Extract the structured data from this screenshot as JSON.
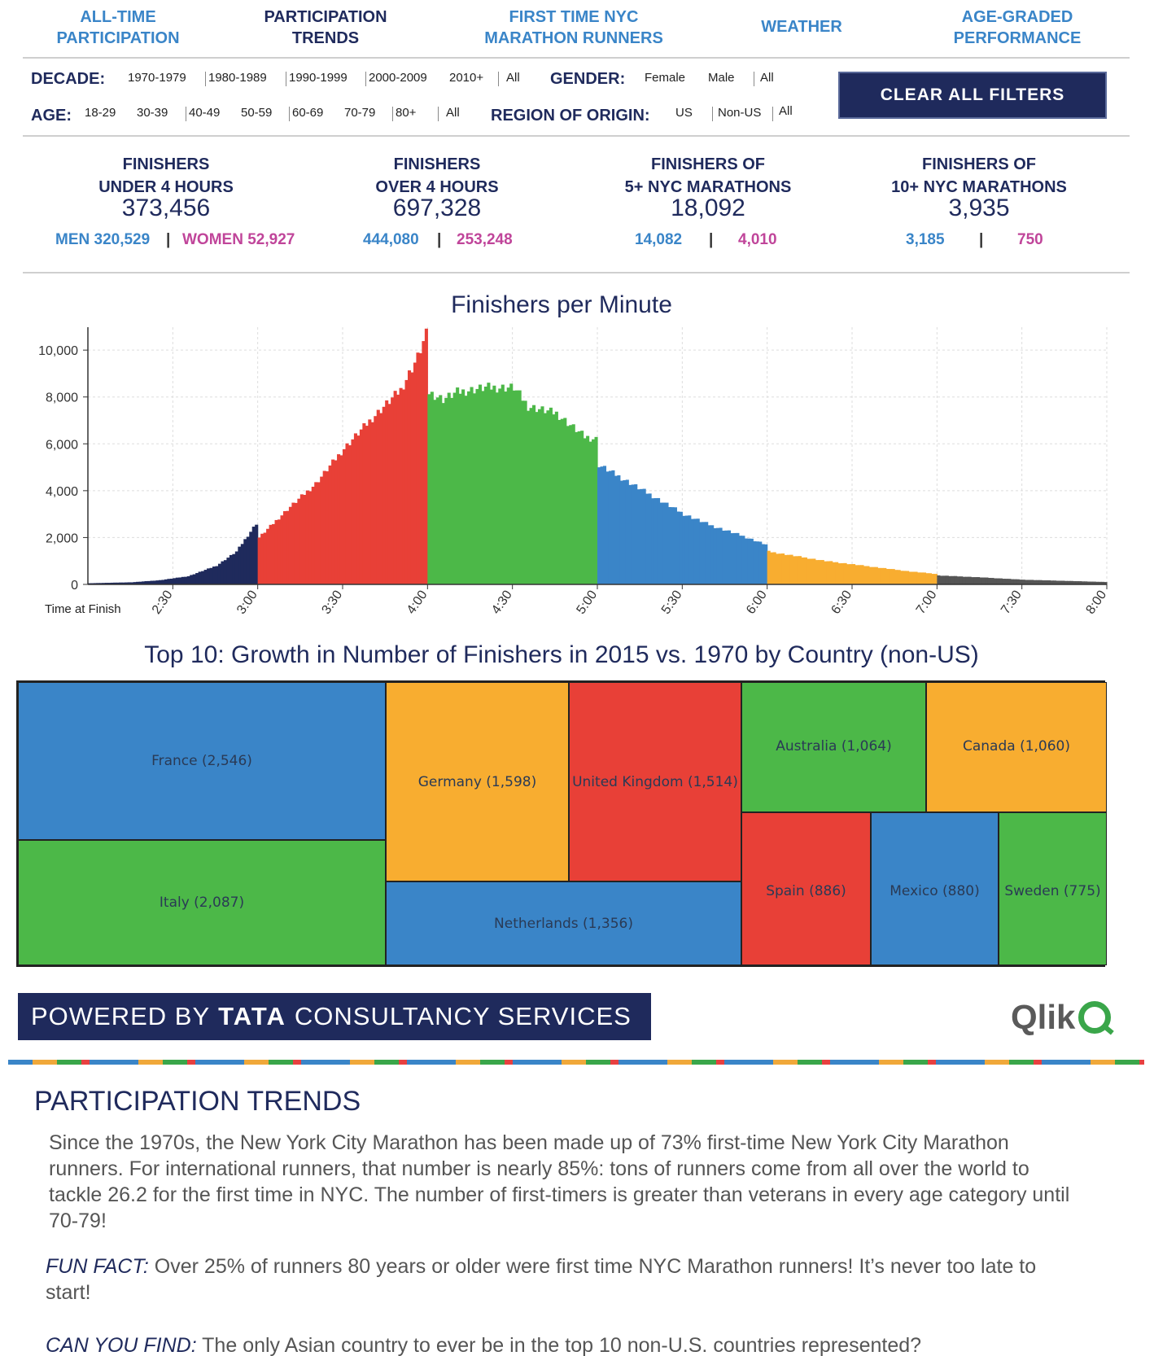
{
  "nav": {
    "tabs": [
      {
        "label": "ALL-TIME\nPARTICIPATION",
        "active": false
      },
      {
        "label": "PARTICIPATION\nTRENDS",
        "active": true
      },
      {
        "label": "FIRST TIME NYC\nMARATHON RUNNERS",
        "active": false
      },
      {
        "label": "WEATHER",
        "active": false
      },
      {
        "label": "AGE-GRADED\nPERFORMANCE",
        "active": false
      }
    ]
  },
  "filters": {
    "decade_label": "DECADE:",
    "decade_options": [
      "1970-1979",
      "1980-1989",
      "1990-1999",
      "2000-2009",
      "2010+",
      "All"
    ],
    "gender_label": "GENDER:",
    "gender_options": [
      "Female",
      "Male",
      "All"
    ],
    "age_label": "AGE:",
    "age_options": [
      "18-29",
      "30-39",
      "40-49",
      "50-59",
      "60-69",
      "70-79",
      "80+",
      "All"
    ],
    "region_label": "REGION OF ORIGIN:",
    "region_options": [
      "US",
      "Non-US",
      "All"
    ],
    "clear_label": "CLEAR ALL FILTERS"
  },
  "stats": [
    {
      "label": "FINISHERS\nUNDER 4 HOURS",
      "value": "373,456",
      "men": "MEN 320,529",
      "women": "WOMEN 52,927"
    },
    {
      "label": "FINISHERS\nOVER 4 HOURS",
      "value": "697,328",
      "men": "444,080",
      "women": "253,248"
    },
    {
      "label": "FINISHERS OF\n5+ NYC MARATHONS",
      "value": "18,092",
      "men": "14,082",
      "women": "4,010"
    },
    {
      "label": "FINISHERS OF\n10+ NYC MARATHONS",
      "value": "3,935",
      "men": "3,185",
      "women": "750"
    }
  ],
  "colors": {
    "navy": "#1f2a5c",
    "blue": "#3a85c8",
    "pink": "#c0459a",
    "red": "#e84037",
    "green": "#4cb848",
    "orange": "#f8ad30",
    "darkgray": "#555555"
  },
  "chart_data": [
    {
      "type": "bar",
      "title": "Finishers per Minute",
      "xlabel": "Time at Finish",
      "ylabel": "",
      "ylim": [
        0,
        10700
      ],
      "xlim_minutes": [
        120,
        480
      ],
      "x_ticks": [
        "2:30",
        "3:00",
        "3:30",
        "4:00",
        "4:30",
        "5:00",
        "5:30",
        "6:00",
        "6:30",
        "7:00",
        "7:30",
        "8:00"
      ],
      "x_tick_minutes": [
        150,
        180,
        210,
        240,
        270,
        300,
        330,
        360,
        390,
        420,
        450,
        480
      ],
      "y_ticks": [
        "0",
        "2,000",
        "4,000",
        "6,000",
        "8,000",
        "10,000"
      ],
      "y_tick_values": [
        0,
        2000,
        4000,
        6000,
        8000,
        10000
      ],
      "segments": [
        {
          "from": 120,
          "to": 180,
          "color": "#1f2a5c"
        },
        {
          "from": 180,
          "to": 240,
          "color": "#e84037"
        },
        {
          "from": 240,
          "to": 300,
          "color": "#4cb848"
        },
        {
          "from": 300,
          "to": 360,
          "color": "#3a85c8"
        },
        {
          "from": 360,
          "to": 420,
          "color": "#f8ad30"
        },
        {
          "from": 420,
          "to": 480,
          "color": "#555555"
        }
      ],
      "keypoints": [
        {
          "minute": 120,
          "value": 50
        },
        {
          "minute": 135,
          "value": 90
        },
        {
          "minute": 145,
          "value": 180
        },
        {
          "minute": 155,
          "value": 350
        },
        {
          "minute": 165,
          "value": 800
        },
        {
          "minute": 172,
          "value": 1400
        },
        {
          "minute": 179,
          "value": 2600
        },
        {
          "minute": 180,
          "value": 2000
        },
        {
          "minute": 190,
          "value": 3200
        },
        {
          "minute": 200,
          "value": 4300
        },
        {
          "minute": 210,
          "value": 5800
        },
        {
          "minute": 220,
          "value": 7100
        },
        {
          "minute": 230,
          "value": 8300
        },
        {
          "minute": 236,
          "value": 9700
        },
        {
          "minute": 239,
          "value": 10650
        },
        {
          "minute": 240,
          "value": 8200
        },
        {
          "minute": 245,
          "value": 7900
        },
        {
          "minute": 250,
          "value": 8200
        },
        {
          "minute": 260,
          "value": 8400
        },
        {
          "minute": 270,
          "value": 8400
        },
        {
          "minute": 275,
          "value": 7600
        },
        {
          "minute": 285,
          "value": 7300
        },
        {
          "minute": 295,
          "value": 6300
        },
        {
          "minute": 299,
          "value": 6200
        },
        {
          "minute": 300,
          "value": 5100
        },
        {
          "minute": 310,
          "value": 4400
        },
        {
          "minute": 320,
          "value": 3700
        },
        {
          "minute": 330,
          "value": 3000
        },
        {
          "minute": 340,
          "value": 2500
        },
        {
          "minute": 350,
          "value": 2100
        },
        {
          "minute": 359,
          "value": 1700
        },
        {
          "minute": 360,
          "value": 1400
        },
        {
          "minute": 370,
          "value": 1200
        },
        {
          "minute": 380,
          "value": 1000
        },
        {
          "minute": 390,
          "value": 850
        },
        {
          "minute": 400,
          "value": 700
        },
        {
          "minute": 410,
          "value": 550
        },
        {
          "minute": 419,
          "value": 450
        },
        {
          "minute": 420,
          "value": 380
        },
        {
          "minute": 435,
          "value": 300
        },
        {
          "minute": 450,
          "value": 200
        },
        {
          "minute": 465,
          "value": 150
        },
        {
          "minute": 480,
          "value": 100
        }
      ]
    },
    {
      "type": "treemap",
      "title": "Top 10: Growth in Number of Finishers in 2015 vs. 1970 by Country (non-US)",
      "items": [
        {
          "label": "France (2,546)",
          "country": "France",
          "value": 2546,
          "color": "#3a85c8"
        },
        {
          "label": "Italy (2,087)",
          "country": "Italy",
          "value": 2087,
          "color": "#4cb848"
        },
        {
          "label": "Germany (1,598)",
          "country": "Germany",
          "value": 1598,
          "color": "#f8ad30"
        },
        {
          "label": "United Kingdom (1,514)",
          "country": "United Kingdom",
          "value": 1514,
          "color": "#e84037"
        },
        {
          "label": "Netherlands (1,356)",
          "country": "Netherlands",
          "value": 1356,
          "color": "#3a85c8"
        },
        {
          "label": "Australia (1,064)",
          "country": "Australia",
          "value": 1064,
          "color": "#4cb848"
        },
        {
          "label": "Canada (1,060)",
          "country": "Canada",
          "value": 1060,
          "color": "#f8ad30"
        },
        {
          "label": "Spain (886)",
          "country": "Spain",
          "value": 886,
          "color": "#e84037"
        },
        {
          "label": "Mexico (880)",
          "country": "Mexico",
          "value": 880,
          "color": "#3a85c8"
        },
        {
          "label": "Sweden (775)",
          "country": "Sweden",
          "value": 775,
          "color": "#4cb848"
        }
      ]
    }
  ],
  "footer": {
    "powered_prefix": "POWERED BY",
    "powered_brand": "TATA",
    "powered_suffix": "CONSULTANCY SERVICES",
    "qlik": "Qlik"
  },
  "article": {
    "title": "PARTICIPATION TRENDS",
    "body": "Since the 1970s, the New York City Marathon has been made up of 73% first-time New York City Marathon runners. For international runners, that number is nearly 85%: tons of runners come from all over the world to tackle 26.2 for the first time in NYC. The number of first-timers is greater than veterans in every age category until 70-79!",
    "fun_fact_label": "FUN FACT:",
    "fun_fact_text": " Over 25% of runners 80 years or older were first time NYC Marathon runners! It’s never too late to start!",
    "find_label": "CAN YOU FIND:",
    "find_text": "  The only Asian country to ever be in the top 10 non-U.S. countries represented?"
  }
}
